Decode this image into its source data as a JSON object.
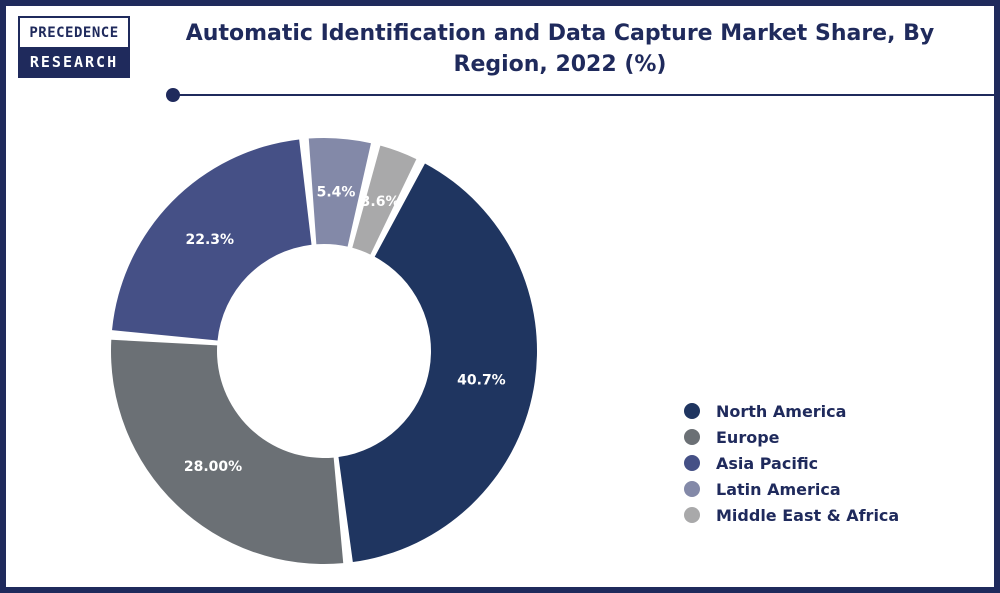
{
  "logo": {
    "top": "PRECEDENCE",
    "bottom": "RESEARCH"
  },
  "chart_data": {
    "type": "pie",
    "title": "Automatic Identification and Data Capture Market Share, By Region, 2022 (%)",
    "categories": [
      "North America",
      "Europe",
      "Asia Pacific",
      "Latin America",
      "Middle East & Africa"
    ],
    "values": [
      40.7,
      28.0,
      22.3,
      5.4,
      3.6
    ],
    "data_labels": [
      "40.7%",
      "28.00%",
      "22.3%",
      "5.4%",
      "3.6%"
    ],
    "colors": [
      "#1f3560",
      "#6b7075",
      "#455086",
      "#8389a8",
      "#a9a9aa"
    ],
    "donut": true,
    "legend_position": "right"
  }
}
